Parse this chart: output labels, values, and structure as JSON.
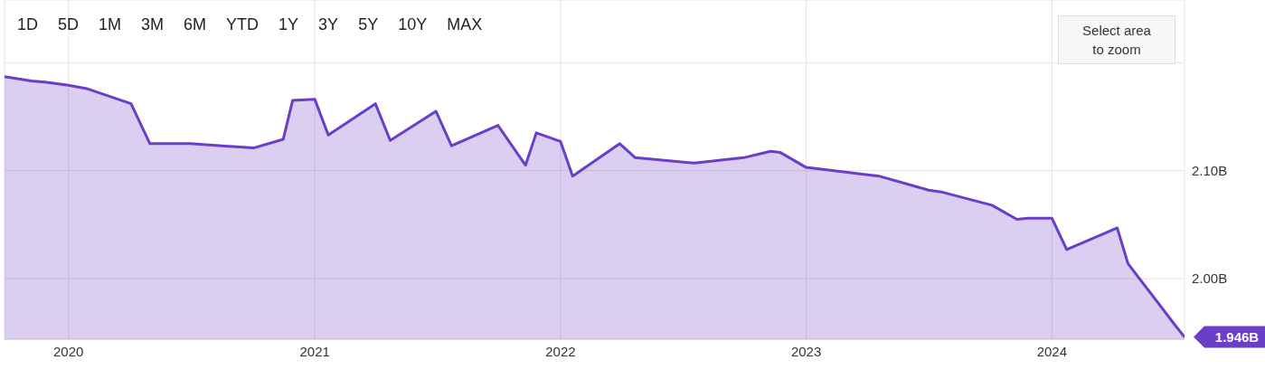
{
  "chart_data": {
    "type": "area",
    "color": "#6a3ec8",
    "x": [
      "2019-09-28",
      "2019-11-07",
      "2019-11-27",
      "2020-01-01",
      "2020-01-28",
      "2020-04-03",
      "2020-05-01",
      "2020-06-30",
      "2020-10-02",
      "2020-11-15",
      "2020-11-29",
      "2021-01-01",
      "2021-01-21",
      "2021-04-01",
      "2021-04-23",
      "2021-06-30",
      "2021-07-23",
      "2021-09-30",
      "2021-11-10",
      "2021-11-26",
      "2022-01-01",
      "2022-01-19",
      "2022-03-30",
      "2022-04-22",
      "2022-07-19",
      "2022-09-30",
      "2022-11-09",
      "2022-11-23",
      "2023-01-01",
      "2023-04-19",
      "2023-07-02",
      "2023-07-23",
      "2023-10-04",
      "2023-11-10",
      "2023-11-26",
      "2024-01-01",
      "2024-01-23",
      "2024-04-07",
      "2024-04-23",
      "2024-07-02",
      "2024-07-16"
    ],
    "values": [
      2.187,
      2.183,
      2.182,
      2.179,
      2.176,
      2.162,
      2.125,
      2.125,
      2.121,
      2.129,
      2.165,
      2.166,
      2.133,
      2.162,
      2.128,
      2.155,
      2.123,
      2.142,
      2.105,
      2.135,
      2.127,
      2.095,
      2.125,
      2.112,
      2.107,
      2.112,
      2.118,
      2.117,
      2.103,
      2.095,
      2.082,
      2.08,
      2.068,
      2.055,
      2.056,
      2.056,
      2.027,
      2.047,
      2.014,
      1.957,
      1.946
    ],
    "xlim": [
      "2019-09-28",
      "2024-07-16"
    ],
    "xticks": [
      "2020",
      "2021",
      "2022",
      "2023",
      "2024"
    ],
    "ylim": [
      1.944,
      2.258
    ],
    "yticks": [
      {
        "value": 2.0,
        "label": "2.00B"
      },
      {
        "value": 2.1,
        "label": "2.10B"
      },
      {
        "value": 2.2,
        "label": null
      }
    ],
    "grid": true,
    "annotations": [
      "1D",
      "5D",
      "1M",
      "3M",
      "6M",
      "YTD",
      "1Y",
      "3Y",
      "5Y",
      "10Y",
      "MAX",
      "Select area to zoom",
      {
        "text": "1.946B",
        "x": "2024-07-16",
        "y": 1.946
      }
    ]
  }
}
